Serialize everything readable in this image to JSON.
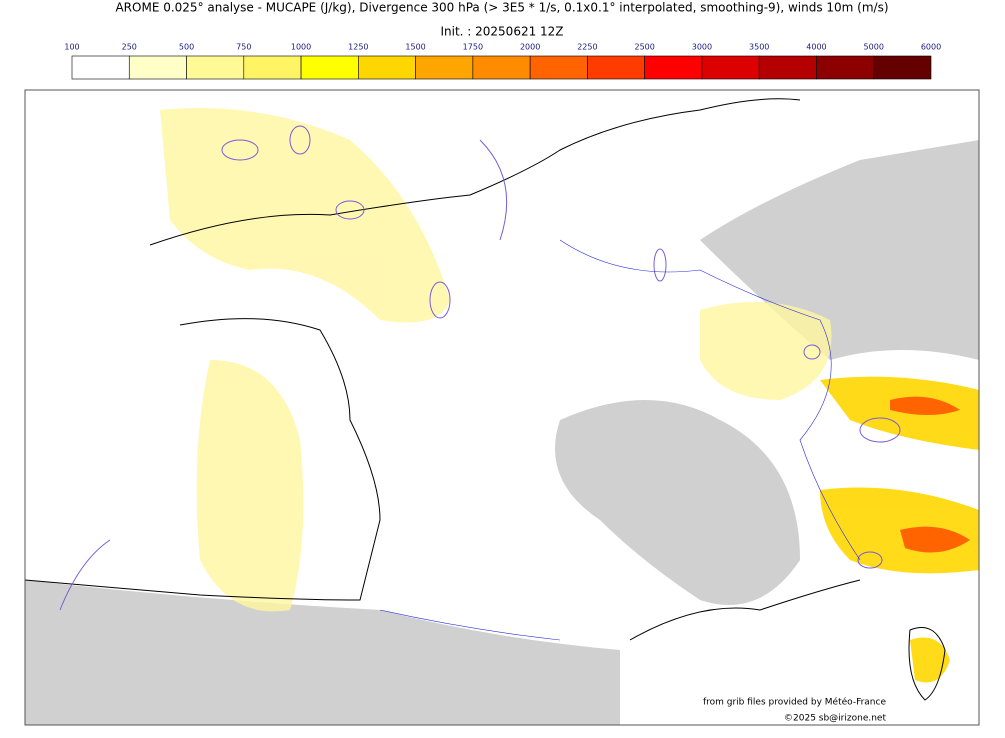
{
  "title": "AROME 0.025° analyse - MUCAPE (J/kg), Divergence 300 hPa (> 3E5 * 1/s, 0.1x0.1° interpolated, smoothing-9), winds 10m (m/s)",
  "init": "Init. : 20250621 12Z",
  "colorbar": {
    "ticks": [
      100,
      250,
      500,
      750,
      1000,
      1250,
      1500,
      1750,
      2000,
      2250,
      2500,
      3000,
      3500,
      4000,
      5000,
      6000
    ],
    "colors": [
      "#ffffff",
      "#ffffc8",
      "#fffa96",
      "#fff564",
      "#ffff00",
      "#ffd700",
      "#ffa500",
      "#ff8c00",
      "#ff6400",
      "#ff3c00",
      "#ff0000",
      "#dc0000",
      "#b40000",
      "#8c0000",
      "#640000"
    ]
  },
  "credits": [
    "from grib files provided by Météo-France",
    "©2025 sb@irizone.net"
  ]
}
